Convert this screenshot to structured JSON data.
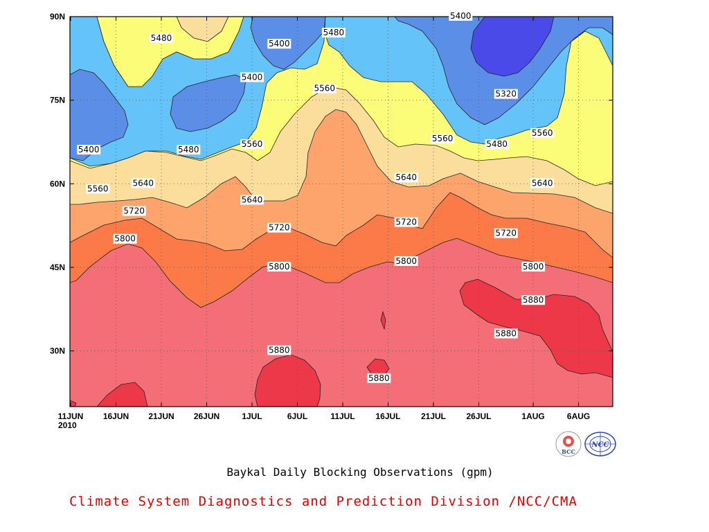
{
  "chart_data": {
    "type": "heatmap",
    "title": "Baykal Daily Blocking Observations (gpm)",
    "x_ticks": [
      "11JUN",
      "16JUN",
      "21JUN",
      "26JUN",
      "1JUL",
      "6JUL",
      "11JUL",
      "16JUL",
      "21JUL",
      "26JUL",
      "1AUG",
      "6AUG"
    ],
    "x_year": "2010",
    "y_ticks": [
      "90N",
      "75N",
      "60N",
      "45N",
      "30N"
    ],
    "xlim_days": [
      0,
      60
    ],
    "ylim_lat": [
      20,
      90
    ],
    "contour_levels": [
      5320,
      5400,
      5480,
      5560,
      5640,
      5720,
      5800,
      5880
    ],
    "colors": {
      "below_5320": "#4a4ae8",
      "5320_5400": "#5b8ee6",
      "5400_5480": "#64c4fa",
      "5480_5560": "#fbfc78",
      "5560_5640": "#fcde9c",
      "5640_5720": "#fca46c",
      "5720_5800": "#fc7a48",
      "5800_5880": "#f46e78",
      "above_5880": "#ec3848"
    },
    "contour_labels": [
      {
        "value": "5480",
        "date": "21JUN",
        "lat": 86
      },
      {
        "value": "5400",
        "date": "13JUN",
        "lat": 66
      },
      {
        "value": "5400",
        "date": "1JUL",
        "lat": 79
      },
      {
        "value": "5400",
        "date": "4JUL",
        "lat": 85
      },
      {
        "value": "5480",
        "date": "10JUL",
        "lat": 87
      },
      {
        "value": "5400",
        "date": "24JUL",
        "lat": 90
      },
      {
        "value": "5560",
        "date": "9JUL",
        "lat": 77
      },
      {
        "value": "5320",
        "date": "29JUL",
        "lat": 76
      },
      {
        "value": "5480",
        "date": "24JUN",
        "lat": 66
      },
      {
        "value": "5560",
        "date": "1JUL",
        "lat": 67
      },
      {
        "value": "5560",
        "date": "22JUL",
        "lat": 68
      },
      {
        "value": "5480",
        "date": "28JUL",
        "lat": 67
      },
      {
        "value": "5560",
        "date": "2AUG",
        "lat": 69
      },
      {
        "value": "5560",
        "date": "14JUN",
        "lat": 59
      },
      {
        "value": "5640",
        "date": "19JUN",
        "lat": 60
      },
      {
        "value": "5640",
        "date": "18JUL",
        "lat": 61
      },
      {
        "value": "5640",
        "date": "2AUG",
        "lat": 60
      },
      {
        "value": "5640",
        "date": "1JUL",
        "lat": 57
      },
      {
        "value": "5720",
        "date": "18JUN",
        "lat": 55
      },
      {
        "value": "5720",
        "date": "4JUL",
        "lat": 52
      },
      {
        "value": "5720",
        "date": "18JUL",
        "lat": 53
      },
      {
        "value": "5720",
        "date": "29JUL",
        "lat": 51
      },
      {
        "value": "5800",
        "date": "17JUN",
        "lat": 50
      },
      {
        "value": "5800",
        "date": "4JUL",
        "lat": 45
      },
      {
        "value": "5800",
        "date": "18JUL",
        "lat": 46
      },
      {
        "value": "5800",
        "date": "1AUG",
        "lat": 45
      },
      {
        "value": "5880",
        "date": "1AUG",
        "lat": 39
      },
      {
        "value": "5880",
        "date": "29JUL",
        "lat": 33
      },
      {
        "value": "5880",
        "date": "4JUL",
        "lat": 30
      },
      {
        "value": "5880",
        "date": "15JUL",
        "lat": 25
      }
    ]
  },
  "footer": {
    "title": "Baykal Daily Blocking Observations (gpm)",
    "credit": "Climate System Diagnostics and Prediction Division /NCC/CMA",
    "logo_bcc": "BCC",
    "logo_ncc": "NCC"
  }
}
